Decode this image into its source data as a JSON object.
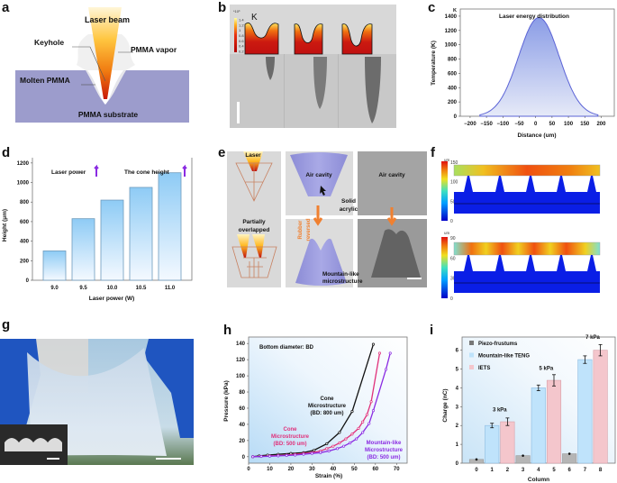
{
  "panels": {
    "a": {
      "label": "a",
      "texts": {
        "laser_beam": "Laser beam",
        "keyhole": "Keyhole",
        "pmma_vapor": "PMMA vapor",
        "molten_pmma": "Molten PMMA",
        "pmma_substrate": "PMMA substrate"
      }
    },
    "b": {
      "label": "b",
      "colorbar_exponent": "*10³",
      "unit": "K",
      "colorbar_ticks": [
        "1.4",
        "1.2",
        "1",
        "0.8",
        "0.6",
        "0.4",
        "0.2"
      ]
    },
    "c": {
      "label": "c"
    },
    "d": {
      "label": "d"
    },
    "e": {
      "label": "e",
      "texts": {
        "laser": "Laser",
        "partially_overlapped_1": "Partially",
        "partially_overlapped_2": "overlapped",
        "air_cavity_1": "Air cavity",
        "solid_1": "Solid",
        "solid_2": "acrylic",
        "rubber_1": "Rubber",
        "rubber_2": "reversed",
        "air_cavity_2": "Air cavity",
        "mountain_1": "Mountain-like",
        "mountain_2": "microstructure"
      }
    },
    "f": {
      "label": "f",
      "top": {
        "unit": "um",
        "ticks": [
          "150",
          "100",
          "50",
          "0"
        ]
      },
      "bottom": {
        "unit": "um",
        "ticks": [
          "90",
          "60",
          "30",
          "0"
        ]
      }
    },
    "g": {
      "label": "g"
    },
    "h": {
      "label": "h"
    },
    "i": {
      "label": "i"
    }
  },
  "chart_data": [
    {
      "id": "c",
      "type": "area",
      "title": "Laser energy distribution",
      "xlabel": "Distance (um)",
      "ylabel": "Temperature (K)",
      "y_unit_label": "K",
      "xlim": [
        -230,
        240
      ],
      "ylim": [
        0,
        1500
      ],
      "xticks": [
        -200,
        -150,
        -100,
        -50,
        0,
        50,
        100,
        150,
        200
      ],
      "yticks": [
        0,
        200,
        400,
        600,
        800,
        1000,
        1200,
        1400
      ],
      "gaussian": {
        "peak": 1380,
        "center": 10,
        "sigma": 62,
        "x_range": [
          -170,
          190
        ]
      }
    },
    {
      "id": "d",
      "type": "bar",
      "categories": [
        "9.0",
        "9.5",
        "10.0",
        "10.5",
        "11.0"
      ],
      "values": [
        300,
        630,
        820,
        950,
        1100
      ],
      "xlabel": "Laser power (W)",
      "ylabel": "Height (μm)",
      "ylim": [
        0,
        1300
      ],
      "yticks": [
        0,
        200,
        400,
        600,
        800,
        1000,
        1200
      ],
      "annotations": [
        "Laser power",
        "The cone height"
      ]
    },
    {
      "id": "h",
      "type": "line",
      "xlabel": "Strain (%)",
      "ylabel": "Pressure (kPa)",
      "xlim": [
        0,
        75
      ],
      "ylim": [
        -8,
        148
      ],
      "xticks": [
        0,
        10,
        20,
        30,
        40,
        50,
        60,
        70
      ],
      "yticks": [
        0,
        20,
        40,
        60,
        80,
        100,
        120,
        140
      ],
      "annotation": "Bottom diameter: BD",
      "series": [
        {
          "name": "Cone Microstructure (BD: 800 um)",
          "label_lines": [
            "Cone",
            "Microstructure",
            "(BD: 800 um)"
          ],
          "color": "#111111",
          "x": [
            2,
            5,
            9,
            14,
            20,
            26,
            31,
            37,
            43,
            49,
            59
          ],
          "y": [
            0,
            1,
            2,
            3,
            4,
            5,
            8,
            16,
            30,
            56,
            139
          ]
        },
        {
          "name": "Cone Microstructure (BD: 500 um)",
          "label_lines": [
            "Cone",
            "Microstructure",
            "(BD: 500 um)"
          ],
          "color": "#e0307a",
          "x": [
            2,
            6,
            10,
            14,
            18,
            22,
            26,
            30,
            34,
            37,
            40,
            43,
            46,
            49,
            52,
            54,
            56,
            58,
            62
          ],
          "y": [
            0,
            0.5,
            1,
            1.5,
            2,
            3,
            4,
            5,
            7,
            10,
            13,
            17,
            22,
            28,
            35,
            43,
            52,
            68,
            128
          ]
        },
        {
          "name": "Mountain-like Microstructure (BD: 500 um)",
          "label_lines": [
            "Mountain-like",
            "Microstructure",
            "(BD: 500 um)"
          ],
          "color": "#8a2be2",
          "x": [
            2,
            6,
            10,
            14,
            18,
            22,
            26,
            30,
            34,
            38,
            42,
            45,
            48,
            51,
            54,
            57,
            59,
            65,
            67
          ],
          "y": [
            0,
            0.3,
            0.6,
            1,
            1.5,
            2,
            3,
            4,
            5,
            7,
            10,
            13,
            17,
            22,
            30,
            41,
            57,
            108,
            128
          ]
        }
      ]
    },
    {
      "id": "i",
      "type": "bar",
      "xlabel": "Column",
      "ylabel": "Charge (nC)",
      "ylim": [
        0,
        6.7
      ],
      "yticks": [
        0,
        1,
        2,
        3,
        4,
        5,
        6
      ],
      "categories": [
        "0",
        "1",
        "2",
        "3",
        "4",
        "5",
        "6",
        "7",
        "8"
      ],
      "values": [
        0.2,
        2.0,
        2.2,
        0.4,
        4.0,
        4.4,
        0.5,
        5.5,
        6.0
      ],
      "errors": [
        0.03,
        0.12,
        0.2,
        0.03,
        0.15,
        0.3,
        0.04,
        0.2,
        0.3
      ],
      "series_of_bar": [
        0,
        1,
        2,
        0,
        1,
        2,
        0,
        1,
        2
      ],
      "legend": [
        {
          "name": "Piezo-frustums",
          "color": "#b5b5b5"
        },
        {
          "name": "Mountain-like TENG",
          "color": "#bfe3fb"
        },
        {
          "name": "IETS",
          "color": "#f4c6cc"
        }
      ],
      "group_labels": [
        {
          "text": "3 kPa",
          "column": 1.5,
          "value": 2.75
        },
        {
          "text": "5 kPa",
          "column": 4.5,
          "value": 4.95
        },
        {
          "text": "7 kPa",
          "column": 7.5,
          "value": 6.6
        }
      ]
    }
  ]
}
